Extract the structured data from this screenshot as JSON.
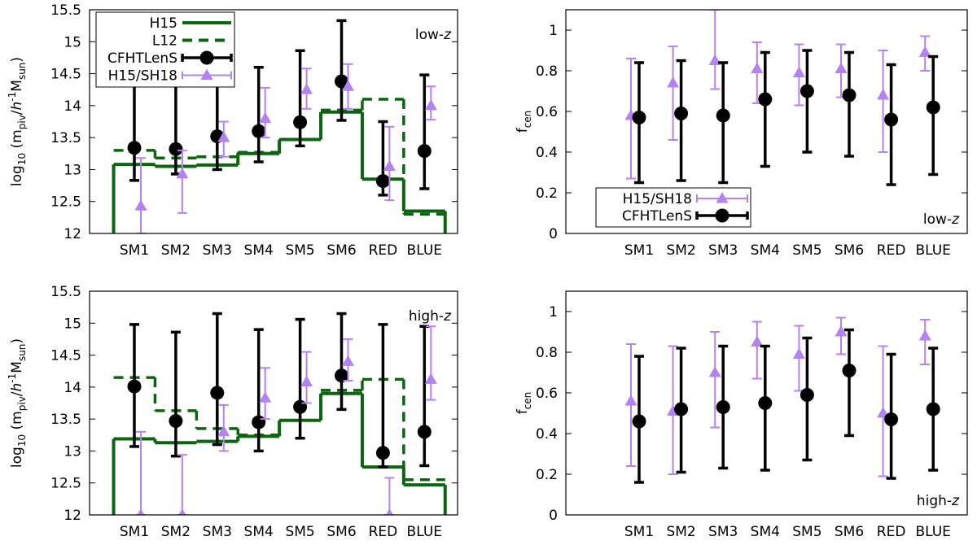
{
  "chart_data": [
    {
      "type": "errorbar_step",
      "ylabel": [
        "log",
        "10",
        " (m",
        "piv",
        "/",
        "h",
        "-1",
        "M",
        "sun",
        ")"
      ],
      "annotation": [
        "low-",
        "z"
      ],
      "annotation_corner": "upper right",
      "categories": [
        "SM1",
        "SM2",
        "SM3",
        "SM4",
        "SM5",
        "SM6",
        "RED",
        "BLUE"
      ],
      "ylim": [
        12,
        15.5
      ],
      "yticks": [
        12,
        12.5,
        13,
        13.5,
        14,
        14.5,
        15,
        15.5
      ],
      "legend": "upper left",
      "series": [
        {
          "name": "H15",
          "kind": "step",
          "style": "solid",
          "color": "#0d6410",
          "values": [
            13.08,
            13.05,
            13.07,
            13.25,
            13.47,
            13.9,
            12.85,
            12.35
          ]
        },
        {
          "name": "L12",
          "kind": "step",
          "style": "dashed",
          "color": "#0d6410",
          "values": [
            13.3,
            13.18,
            13.2,
            13.27,
            13.47,
            13.93,
            14.1,
            12.3
          ]
        },
        {
          "name": "CFHTLenS",
          "kind": "errorbar",
          "marker": "circle",
          "color": "#000000",
          "values": [
            13.34,
            13.32,
            13.52,
            13.6,
            13.74,
            14.38,
            12.82,
            13.29
          ],
          "lower": [
            12.83,
            12.93,
            13.0,
            13.12,
            13.37,
            13.77,
            12.6,
            12.7
          ],
          "upper": [
            15.0,
            15.0,
            15.0,
            14.6,
            14.86,
            15.33,
            13.75,
            14.48
          ]
        },
        {
          "name": "H15/SH18",
          "kind": "errorbar",
          "marker": "triangle",
          "color": "#b383f0",
          "values": [
            12.43,
            12.93,
            13.5,
            13.8,
            14.25,
            14.3,
            13.05,
            14.0
          ],
          "lower": [
            12.0,
            12.32,
            13.2,
            13.5,
            13.95,
            13.95,
            12.52,
            13.78
          ],
          "upper": [
            13.18,
            13.3,
            13.75,
            14.28,
            14.58,
            14.65,
            13.67,
            14.3
          ]
        }
      ]
    },
    {
      "type": "errorbar_step",
      "ylabel": [
        "f",
        "cen"
      ],
      "annotation": [
        "low-",
        "z"
      ],
      "annotation_corner": "lower right",
      "categories": [
        "SM1",
        "SM2",
        "SM3",
        "SM4",
        "SM5",
        "SM6",
        "RED",
        "BLUE"
      ],
      "ylim": [
        0,
        1.1
      ],
      "yticks": [
        0,
        0.2,
        0.4,
        0.6,
        0.8,
        1
      ],
      "legend": "lower left",
      "series": [
        {
          "name": "H15/SH18",
          "kind": "errorbar",
          "marker": "triangle",
          "color": "#b383f0",
          "values": [
            0.58,
            0.74,
            0.85,
            0.81,
            0.79,
            0.81,
            0.68,
            0.89
          ],
          "lower": [
            0.27,
            0.46,
            0.71,
            0.64,
            0.63,
            0.67,
            0.4,
            0.8
          ],
          "upper": [
            0.86,
            0.92,
            1.1,
            0.94,
            0.93,
            0.93,
            0.9,
            0.97
          ]
        },
        {
          "name": "CFHTLenS",
          "kind": "errorbar",
          "marker": "circle",
          "color": "#000000",
          "values": [
            0.57,
            0.59,
            0.58,
            0.66,
            0.7,
            0.68,
            0.56,
            0.62
          ],
          "lower": [
            0.25,
            0.26,
            0.25,
            0.33,
            0.4,
            0.38,
            0.24,
            0.29
          ],
          "upper": [
            0.84,
            0.85,
            0.84,
            0.89,
            0.9,
            0.89,
            0.83,
            0.87
          ]
        }
      ]
    },
    {
      "type": "errorbar_step",
      "ylabel": [
        "log",
        "10",
        " (m",
        "piv",
        "/",
        "h",
        "-1",
        "M",
        "sun",
        ")"
      ],
      "annotation": [
        "high-",
        "z"
      ],
      "annotation_corner": "upper right",
      "categories": [
        "SM1",
        "SM2",
        "SM3",
        "SM4",
        "SM5",
        "SM6",
        "RED",
        "BLUE"
      ],
      "ylim": [
        12,
        15.5
      ],
      "yticks": [
        12,
        12.5,
        13,
        13.5,
        14,
        14.5,
        15,
        15.5
      ],
      "series": [
        {
          "kind": "step",
          "style": "solid",
          "color": "#0d6410",
          "values": [
            13.19,
            13.13,
            13.15,
            13.23,
            13.48,
            13.9,
            12.75,
            12.47
          ]
        },
        {
          "kind": "step",
          "style": "dashed",
          "color": "#0d6410",
          "values": [
            14.15,
            13.63,
            13.35,
            13.25,
            13.48,
            13.95,
            14.12,
            12.55
          ]
        },
        {
          "kind": "errorbar",
          "marker": "circle",
          "color": "#000000",
          "values": [
            14.01,
            13.47,
            13.91,
            13.45,
            13.69,
            14.18,
            12.97,
            13.3
          ],
          "lower": [
            13.07,
            12.92,
            13.1,
            13.0,
            13.2,
            13.65,
            12.75,
            12.77
          ],
          "upper": [
            14.98,
            14.86,
            15.15,
            14.9,
            15.06,
            15.15,
            14.98,
            14.95
          ]
        },
        {
          "kind": "errorbar",
          "marker": "triangle",
          "color": "#b383f0",
          "values": [
            12.0,
            12.0,
            13.3,
            13.83,
            14.08,
            14.4,
            12.0,
            14.12
          ],
          "lower": [
            12.0,
            12.0,
            13.0,
            13.5,
            13.75,
            14.1,
            12.0,
            13.8
          ],
          "upper": [
            13.3,
            12.94,
            13.72,
            14.3,
            14.55,
            14.75,
            12.58,
            14.95
          ]
        }
      ]
    },
    {
      "type": "errorbar_step",
      "ylabel": [
        "f",
        "cen"
      ],
      "annotation": [
        "high-",
        "z"
      ],
      "annotation_corner": "lower right",
      "categories": [
        "SM1",
        "SM2",
        "SM3",
        "SM4",
        "SM5",
        "SM6",
        "RED",
        "BLUE"
      ],
      "ylim": [
        0,
        1.1
      ],
      "yticks": [
        0,
        0.2,
        0.4,
        0.6,
        0.8,
        1
      ],
      "series": [
        {
          "kind": "errorbar",
          "marker": "triangle",
          "color": "#b383f0",
          "values": [
            0.56,
            0.51,
            0.7,
            0.85,
            0.79,
            0.9,
            0.5,
            0.88
          ],
          "lower": [
            0.24,
            0.2,
            0.43,
            0.67,
            0.61,
            0.79,
            0.19,
            0.74
          ],
          "upper": [
            0.84,
            0.83,
            0.9,
            0.95,
            0.93,
            0.97,
            0.83,
            0.96
          ]
        },
        {
          "kind": "errorbar",
          "marker": "circle",
          "color": "#000000",
          "values": [
            0.46,
            0.52,
            0.53,
            0.55,
            0.59,
            0.71,
            0.47,
            0.52
          ],
          "lower": [
            0.16,
            0.21,
            0.23,
            0.22,
            0.27,
            0.39,
            0.18,
            0.22
          ],
          "upper": [
            0.78,
            0.82,
            0.83,
            0.83,
            0.87,
            0.91,
            0.79,
            0.82
          ]
        }
      ]
    }
  ]
}
